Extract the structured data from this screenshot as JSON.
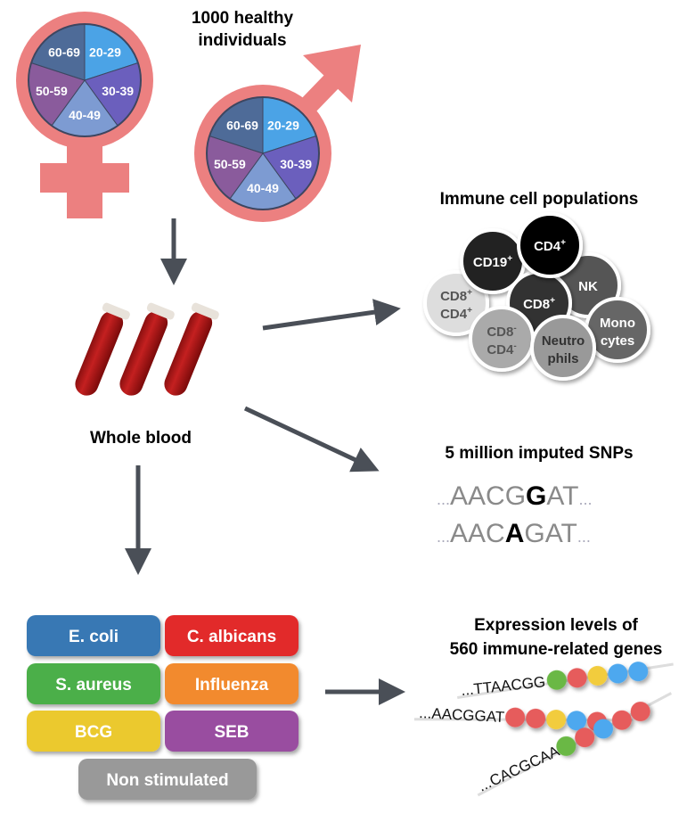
{
  "cohort": {
    "title_line1": "1000 healthy",
    "title_line2": "individuals",
    "age_groups": [
      "20-29",
      "30-39",
      "40-49",
      "50-59",
      "60-69"
    ],
    "age_colors": [
      "#4ba3e6",
      "#6b5fbd",
      "#7d9bd2",
      "#8a5b9c",
      "#4e6b98"
    ],
    "symbol_color": "#ec8080"
  },
  "sample": {
    "label": "Whole blood"
  },
  "immune": {
    "title": "Immune cell populations",
    "cells": [
      {
        "l1": "CD19",
        "s1": "+",
        "l2": "",
        "s2": "",
        "color": "#222222",
        "text": "#ffffff"
      },
      {
        "l1": "CD4",
        "s1": "+",
        "l2": "",
        "s2": "",
        "color": "#000000",
        "text": "#ffffff"
      },
      {
        "l1": "NK",
        "s1": "",
        "l2": "",
        "s2": "",
        "color": "#555555",
        "text": "#ffffff"
      },
      {
        "l1": "CD8",
        "s1": "+",
        "l2": "CD4",
        "s2": "+",
        "color": "#dddddd",
        "text": "#555555"
      },
      {
        "l1": "CD8",
        "s1": "+",
        "l2": "",
        "s2": "",
        "color": "#333333",
        "text": "#ffffff"
      },
      {
        "l1": "CD8",
        "s1": "-",
        "l2": "CD4",
        "s2": "-",
        "color": "#aaaaaa",
        "text": "#555555"
      },
      {
        "l1": "Neutro",
        "s1": "",
        "l2": "phils",
        "s2": "",
        "color": "#999999",
        "text": "#333333"
      },
      {
        "l1": "Mono",
        "s1": "",
        "l2": "cytes",
        "s2": "",
        "color": "#666666",
        "text": "#ffffff"
      }
    ]
  },
  "snps": {
    "title": "5 million imputed SNPs",
    "seq1": {
      "pre": "AACG",
      "allele": "G",
      "post": "AT"
    },
    "seq2": {
      "pre": "AAC",
      "allele": "A",
      "post": "GAT"
    },
    "ellipsis": "..."
  },
  "stimuli": [
    {
      "label": "E. coli",
      "color": "#3978b4"
    },
    {
      "label": "C. albicans",
      "color": "#e22b2b"
    },
    {
      "label": "S. aureus",
      "color": "#4caf48"
    },
    {
      "label": "Influenza",
      "color": "#f28a2e"
    },
    {
      "label": "BCG",
      "color": "#ebc92e"
    },
    {
      "label": "SEB",
      "color": "#994ea0"
    },
    {
      "label": "Non stimulated",
      "color": "#999999"
    }
  ],
  "expression": {
    "title_line1": "Expression levels of",
    "title_line2": "560 immune-related genes",
    "genes": [
      {
        "seq": "...TTAACGG",
        "beads": [
          "#6ab845",
          "#e65c5c",
          "#f2cc3c",
          "#4ea8ef",
          "#4ea8ef"
        ]
      },
      {
        "seq": "...AACGGAT",
        "beads": [
          "#e65c5c",
          "#e65c5c",
          "#f2cc3c",
          "#4ea8ef",
          "#e65c5c"
        ]
      },
      {
        "seq": "...CACGCAA",
        "beads": [
          "#6ab845",
          "#e65c5c",
          "#4ea8ef",
          "#e65c5c",
          "#e65c5c"
        ]
      }
    ]
  }
}
